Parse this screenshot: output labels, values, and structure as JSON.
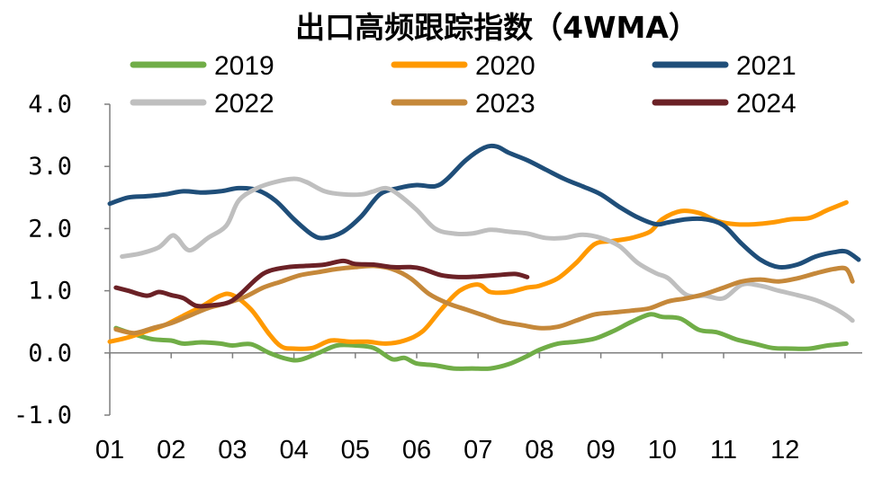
{
  "chart_data": {
    "type": "line",
    "title": "出口高频跟踪指数（4WMA）",
    "xlabel": "",
    "ylabel": "",
    "x_ticks": [
      "01",
      "02",
      "03",
      "04",
      "05",
      "06",
      "07",
      "08",
      "09",
      "10",
      "11",
      "12"
    ],
    "y_ticks": [
      "4.0",
      "3.0",
      "2.0",
      "1.0",
      "0.0",
      "-1.0"
    ],
    "y_tick_values": [
      4,
      3,
      2,
      1,
      0,
      -1
    ],
    "ylim": [
      -1.0,
      4.0
    ],
    "xlim": [
      1,
      13.2
    ],
    "grid": false,
    "legend_position": "top",
    "series": [
      {
        "name": "2019",
        "color": "#70AD47",
        "x": [
          1.1,
          1.4,
          1.7,
          2.0,
          2.2,
          2.5,
          2.8,
          3.0,
          3.3,
          3.6,
          3.9,
          4.1,
          4.4,
          4.7,
          5.0,
          5.3,
          5.6,
          5.8,
          6.0,
          6.3,
          6.6,
          6.9,
          7.2,
          7.5,
          7.8,
          8.0,
          8.3,
          8.6,
          8.9,
          9.2,
          9.5,
          9.8,
          10.0,
          10.3,
          10.6,
          10.9,
          11.2,
          11.5,
          11.8,
          12.1,
          12.4,
          12.7,
          13.0
        ],
        "y": [
          0.4,
          0.3,
          0.22,
          0.2,
          0.15,
          0.17,
          0.15,
          0.12,
          0.14,
          0.0,
          -0.1,
          -0.11,
          0.0,
          0.12,
          0.12,
          0.08,
          -0.1,
          -0.08,
          -0.17,
          -0.2,
          -0.25,
          -0.25,
          -0.25,
          -0.18,
          -0.05,
          0.05,
          0.15,
          0.18,
          0.23,
          0.35,
          0.5,
          0.62,
          0.58,
          0.55,
          0.37,
          0.33,
          0.22,
          0.15,
          0.08,
          0.07,
          0.07,
          0.12,
          0.15
        ]
      },
      {
        "name": "2020",
        "color": "#FF9900",
        "x": [
          1.0,
          1.3,
          1.6,
          1.9,
          2.2,
          2.5,
          2.8,
          3.0,
          3.3,
          3.6,
          3.8,
          4.0,
          4.3,
          4.6,
          4.9,
          5.2,
          5.5,
          5.8,
          6.1,
          6.4,
          6.7,
          7.0,
          7.2,
          7.5,
          7.8,
          8.0,
          8.3,
          8.6,
          8.9,
          9.2,
          9.5,
          9.8,
          10.0,
          10.3,
          10.6,
          10.9,
          11.2,
          11.5,
          11.8,
          12.1,
          12.4,
          12.7,
          13.0
        ],
        "y": [
          0.18,
          0.25,
          0.35,
          0.45,
          0.6,
          0.75,
          0.92,
          0.93,
          0.7,
          0.3,
          0.1,
          0.07,
          0.08,
          0.2,
          0.18,
          0.18,
          0.15,
          0.2,
          0.35,
          0.7,
          1.0,
          1.1,
          0.98,
          0.98,
          1.05,
          1.08,
          1.2,
          1.45,
          1.75,
          1.8,
          1.85,
          1.95,
          2.15,
          2.28,
          2.25,
          2.12,
          2.07,
          2.07,
          2.1,
          2.15,
          2.17,
          2.3,
          2.42
        ]
      },
      {
        "name": "2021",
        "color": "#1F4E79",
        "x": [
          1.0,
          1.3,
          1.6,
          1.9,
          2.2,
          2.5,
          2.8,
          3.1,
          3.4,
          3.7,
          4.0,
          4.3,
          4.5,
          4.8,
          5.1,
          5.4,
          5.7,
          6.0,
          6.3,
          6.5,
          6.8,
          7.1,
          7.3,
          7.5,
          7.8,
          8.1,
          8.4,
          8.7,
          9.0,
          9.3,
          9.6,
          9.9,
          10.1,
          10.4,
          10.7,
          11.0,
          11.3,
          11.6,
          11.9,
          12.2,
          12.5,
          12.8,
          13.0,
          13.2
        ],
        "y": [
          2.4,
          2.5,
          2.52,
          2.55,
          2.6,
          2.58,
          2.6,
          2.65,
          2.62,
          2.45,
          2.15,
          1.9,
          1.85,
          1.95,
          2.2,
          2.55,
          2.65,
          2.7,
          2.68,
          2.8,
          3.1,
          3.3,
          3.32,
          3.22,
          3.1,
          2.95,
          2.8,
          2.68,
          2.55,
          2.35,
          2.18,
          2.07,
          2.1,
          2.15,
          2.15,
          2.05,
          1.75,
          1.5,
          1.38,
          1.42,
          1.55,
          1.62,
          1.63,
          1.5
        ]
      },
      {
        "name": "2022",
        "color": "#BFBFBF",
        "x": [
          1.2,
          1.5,
          1.8,
          2.0,
          2.1,
          2.3,
          2.6,
          2.9,
          3.1,
          3.4,
          3.7,
          4.0,
          4.2,
          4.5,
          4.8,
          5.1,
          5.3,
          5.5,
          5.7,
          6.0,
          6.3,
          6.6,
          6.9,
          7.2,
          7.5,
          7.8,
          8.1,
          8.4,
          8.7,
          9.0,
          9.3,
          9.6,
          9.9,
          10.1,
          10.4,
          10.7,
          11.0,
          11.3,
          11.6,
          11.9,
          12.2,
          12.5,
          12.8,
          13.0,
          13.1
        ],
        "y": [
          1.55,
          1.6,
          1.7,
          1.88,
          1.85,
          1.65,
          1.85,
          2.05,
          2.45,
          2.65,
          2.75,
          2.8,
          2.75,
          2.6,
          2.55,
          2.55,
          2.6,
          2.65,
          2.55,
          2.3,
          2.0,
          1.92,
          1.92,
          1.98,
          1.95,
          1.92,
          1.85,
          1.85,
          1.9,
          1.85,
          1.72,
          1.45,
          1.28,
          1.2,
          0.93,
          0.92,
          0.88,
          1.1,
          1.08,
          1.0,
          0.93,
          0.85,
          0.72,
          0.6,
          0.52
        ]
      },
      {
        "name": "2023",
        "color": "#C5883A",
        "x": [
          1.1,
          1.4,
          1.7,
          2.0,
          2.3,
          2.6,
          2.9,
          3.2,
          3.5,
          3.8,
          4.1,
          4.4,
          4.7,
          5.0,
          5.3,
          5.6,
          5.9,
          6.2,
          6.5,
          6.8,
          7.1,
          7.4,
          7.7,
          8.0,
          8.3,
          8.6,
          8.9,
          9.2,
          9.5,
          9.8,
          10.1,
          10.4,
          10.7,
          11.0,
          11.3,
          11.6,
          11.9,
          12.2,
          12.5,
          12.8,
          13.0,
          13.1
        ],
        "y": [
          0.38,
          0.32,
          0.4,
          0.48,
          0.6,
          0.72,
          0.8,
          0.9,
          1.05,
          1.15,
          1.25,
          1.3,
          1.35,
          1.38,
          1.4,
          1.35,
          1.2,
          0.95,
          0.8,
          0.7,
          0.6,
          0.5,
          0.45,
          0.4,
          0.42,
          0.52,
          0.62,
          0.65,
          0.68,
          0.72,
          0.83,
          0.88,
          0.95,
          1.05,
          1.15,
          1.18,
          1.15,
          1.2,
          1.28,
          1.35,
          1.35,
          1.15
        ]
      },
      {
        "name": "2024",
        "color": "#6B2126",
        "x": [
          1.1,
          1.3,
          1.6,
          1.8,
          2.0,
          2.2,
          2.4,
          2.6,
          2.9,
          3.1,
          3.4,
          3.6,
          3.9,
          4.2,
          4.5,
          4.8,
          5.0,
          5.3,
          5.6,
          5.9,
          6.1,
          6.4,
          6.7,
          7.0,
          7.3,
          7.6,
          7.8
        ],
        "y": [
          1.05,
          1.0,
          0.92,
          0.98,
          0.93,
          0.88,
          0.76,
          0.76,
          0.8,
          0.92,
          1.2,
          1.32,
          1.38,
          1.4,
          1.42,
          1.48,
          1.43,
          1.42,
          1.38,
          1.38,
          1.35,
          1.25,
          1.22,
          1.23,
          1.25,
          1.27,
          1.22
        ]
      }
    ]
  }
}
